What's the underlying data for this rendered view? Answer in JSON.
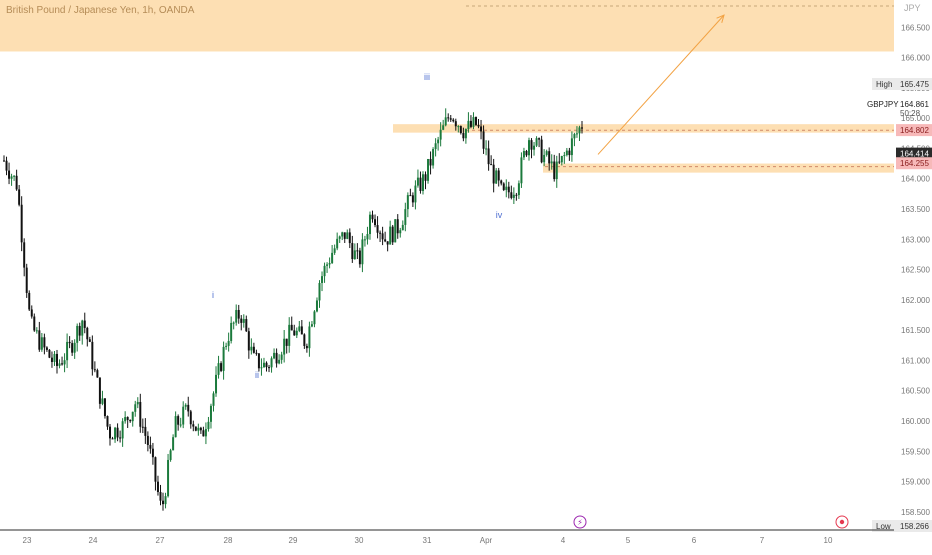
{
  "header": {
    "symbol_title": "British Pound / Japanese Yen, 1h, OANDA"
  },
  "price_axis": {
    "currency_label": "JPY"
  },
  "colors": {
    "zone_fill": "#fdd9a6",
    "candle_up": "#1b7a3c",
    "candle_down": "#111111",
    "wave_label": "#4f6fd1",
    "arrow": "#f2a243",
    "sell_badge": "#f7b9b9",
    "last_badge": "#2b2b2b",
    "event_icon": "#9c27b0",
    "event_icon_alt": "#e53950"
  },
  "chart_data": {
    "type": "candlestick",
    "title": "British Pound / Japanese Yen, 1h, OANDA",
    "symbol": "GBPJPY",
    "timeframe": "1h",
    "grid": false,
    "x_ticks": [
      "23",
      "24",
      "27",
      "28",
      "29",
      "30",
      "31",
      "Apr",
      "4",
      "5",
      "6",
      "7",
      "10"
    ],
    "y_ticks": [
      158.5,
      159.0,
      159.5,
      160.0,
      160.5,
      161.0,
      161.5,
      162.0,
      162.5,
      163.0,
      163.5,
      164.0,
      164.5,
      165.0,
      165.5,
      166.0,
      166.5
    ],
    "ylim": [
      158.2,
      166.95
    ],
    "high": 165.475,
    "low": 158.266,
    "current_price": 164.861,
    "countdown": "50:28",
    "labels": {
      "high_tag": "High",
      "low_tag": "Low",
      "symbol_tag": "GBPJPY",
      "price_tag_1": "164.802",
      "price_tag_2": "164.414",
      "price_tag_3": "164.255"
    },
    "wave_labels": [
      {
        "text": "iii",
        "x": "31",
        "price": 165.55
      },
      {
        "text": "ii",
        "x": "28",
        "price": 160.9
      },
      {
        "text": "iv",
        "x": "Apr",
        "price": 163.4
      },
      {
        "text": "i",
        "x": "28",
        "price": 162.0
      }
    ],
    "zones": [
      {
        "name": "resistance-target",
        "from": 166.1,
        "to": 167.0,
        "start": "23",
        "end": "10"
      },
      {
        "name": "upper-zone",
        "from": 164.76,
        "to": 164.9,
        "start": "31",
        "end": "10"
      },
      {
        "name": "lower-zone",
        "from": 164.1,
        "to": 164.25,
        "start": "4",
        "end": "10"
      }
    ],
    "projection": {
      "from": {
        "x": "4",
        "price": 164.4
      },
      "to": {
        "x": "6",
        "price": 166.7
      }
    },
    "series_close": [
      164.3,
      163.9,
      161.6,
      161.2,
      160.9,
      161.2,
      161.7,
      160.7,
      159.8,
      159.9,
      160.3,
      159.6,
      158.5,
      159.9,
      160.2,
      159.7,
      160.5,
      161.4,
      161.8,
      161.0,
      160.9,
      161.2,
      161.5,
      161.3,
      162.3,
      162.8,
      163.1,
      162.6,
      163.5,
      163.0,
      163.2,
      163.7,
      164.0,
      164.6,
      165.1,
      164.8,
      164.9,
      164.2,
      163.7,
      163.9,
      164.7,
      164.4,
      164.1,
      164.5,
      164.9
    ]
  }
}
